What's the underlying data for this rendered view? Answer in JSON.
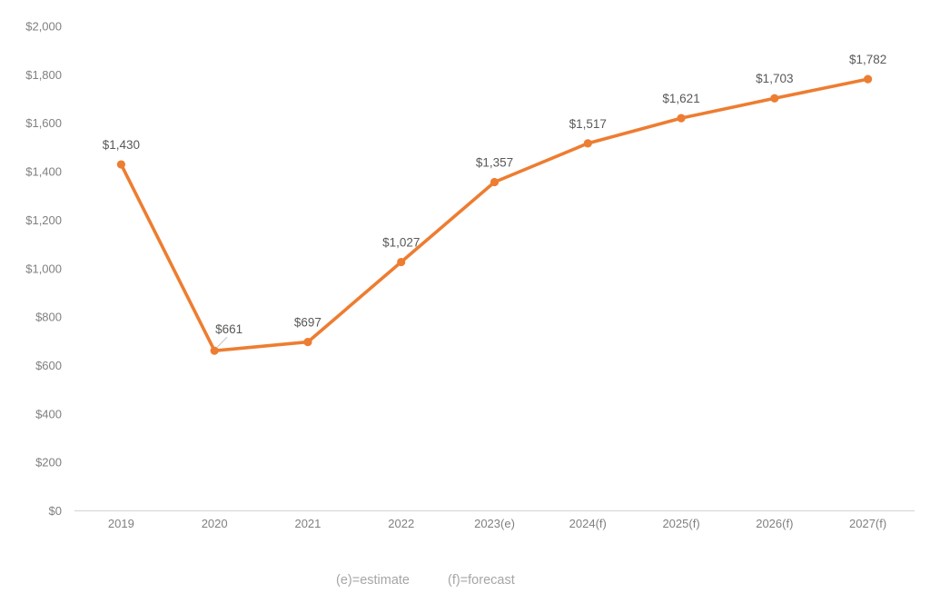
{
  "chart_data": {
    "type": "line",
    "categories": [
      "2019",
      "2020",
      "2021",
      "2022",
      "2023(e)",
      "2024(f)",
      "2025(f)",
      "2026(f)",
      "2027(f)"
    ],
    "values": [
      1430,
      661,
      697,
      1027,
      1357,
      1517,
      1621,
      1703,
      1782
    ],
    "data_labels": [
      "$1,430",
      "$661",
      "$697",
      "$1,027",
      "$1,357",
      "$1,517",
      "$1,621",
      "$1,703",
      "$1,782"
    ],
    "ylim": [
      0,
      2000
    ],
    "ytick_step": 200,
    "ytick_labels": [
      "$0",
      "$200",
      "$400",
      "$600",
      "$800",
      "$1,000",
      "$1,200",
      "$1,400",
      "$1,600",
      "$1,800",
      "$2,000"
    ],
    "grid": false,
    "legend_position": "none",
    "footnotes": [
      "(e)=estimate",
      "(f)=forecast"
    ],
    "colors": {
      "series": "#ED7D31",
      "axis_line": "#D9D9D9",
      "axis_label": "#808080",
      "data_label": "#595959",
      "footnote": "#A6A6A6",
      "leader_line": "#BFBFBF"
    }
  }
}
